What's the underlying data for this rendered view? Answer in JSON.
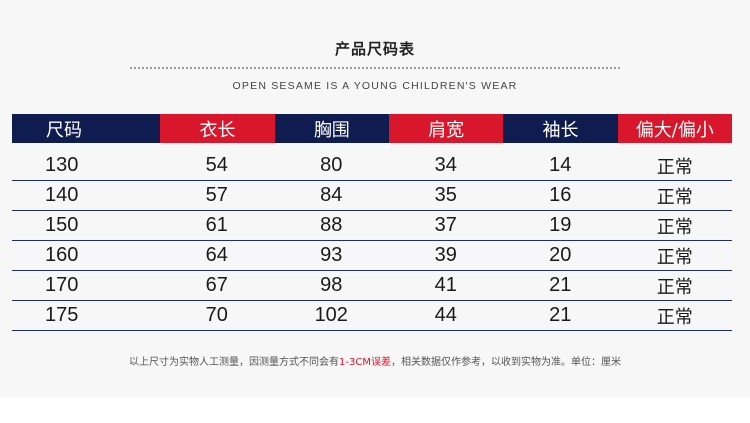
{
  "title": "产品尺码表",
  "subtitle": "OPEN SESAME IS A YOUNG CHILDREN'S WEAR",
  "table": {
    "headers": [
      "尺码",
      "衣长",
      "胸围",
      "肩宽",
      "袖长",
      "偏大/偏小"
    ],
    "rows": [
      [
        "130",
        "54",
        "80",
        "34",
        "14",
        "正常"
      ],
      [
        "140",
        "57",
        "84",
        "35",
        "16",
        "正常"
      ],
      [
        "150",
        "61",
        "88",
        "37",
        "19",
        "正常"
      ],
      [
        "160",
        "64",
        "93",
        "39",
        "20",
        "正常"
      ],
      [
        "170",
        "67",
        "98",
        "41",
        "21",
        "正常"
      ],
      [
        "175",
        "70",
        "102",
        "44",
        "21",
        "正常"
      ]
    ]
  },
  "footnote": {
    "before": "以上尺寸为实物人工测量，因测量方式不同会有",
    "highlight": "1-3CM误差",
    "after": "，相关数据仅作参考，以收到实物为准。单位：厘米"
  },
  "colors": {
    "navy": "#0f1c4f",
    "red": "#d8172c",
    "background": "#f7f7f7"
  }
}
